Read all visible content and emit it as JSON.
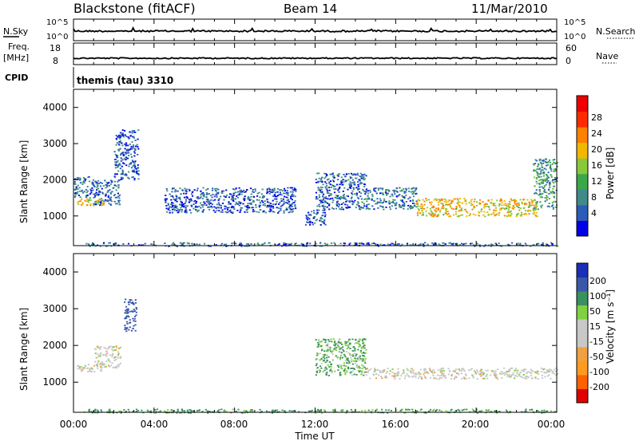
{
  "header": {
    "site": "Blackstone (fitACF)",
    "beam": "Beam 14",
    "date": "11/Mar/2010"
  },
  "noise_panel": {
    "left_label": "N.Sky",
    "left_ticks": [
      "10^5",
      "10^0"
    ],
    "right_label": "N.Search",
    "right_ticks": [
      "10^5",
      "10^0"
    ]
  },
  "freq_panel": {
    "left_label_1": "Freq.",
    "left_label_2": "[MHz]",
    "left_ticks": [
      "18",
      "8"
    ],
    "right_label": "Nave",
    "right_ticks": [
      "60",
      "0"
    ]
  },
  "cpid": {
    "label": "CPID",
    "text": "themis (tau) 3310"
  },
  "x_axis": {
    "ticks": [
      "00:00",
      "04:00",
      "08:00",
      "12:00",
      "16:00",
      "20:00",
      "00:00"
    ],
    "title": "Time UT"
  },
  "power_panel": {
    "ylabel": "Slant Range [km]",
    "yticks": [
      "1000",
      "2000",
      "3000",
      "4000"
    ],
    "colorbar_title": "Power [dB]",
    "colorbar_ticks": [
      "4",
      "8",
      "12",
      "16",
      "20",
      "24",
      "28"
    ]
  },
  "velocity_panel": {
    "ylabel": "Slant Range [km]",
    "yticks": [
      "1000",
      "2000",
      "3000",
      "4000"
    ],
    "colorbar_title": "Velocity [m s⁻¹]",
    "colorbar_ticks": [
      "200",
      "100",
      "50",
      "15",
      "-15",
      "-50",
      "-100",
      "-200"
    ]
  },
  "chart_data": [
    {
      "type": "line",
      "name": "noise",
      "x": [
        0,
        0.1,
        24
      ],
      "ylim_log": [
        0,
        5
      ],
      "level_note": "flat near bottom of log scale with small spikes",
      "x_range_hours": [
        0,
        24
      ]
    },
    {
      "type": "line",
      "name": "frequency",
      "ylim": [
        8,
        18
      ],
      "approx_value_mhz": 10.5,
      "x_range_hours": [
        0,
        24
      ]
    },
    {
      "type": "heatmap",
      "name": "power",
      "x_range_hours": [
        0,
        24
      ],
      "ylim_km": [
        180,
        4500
      ],
      "colorbar_range": [
        0,
        30
      ],
      "regions": [
        {
          "t": [
            0,
            1.5
          ],
          "r": [
            1300,
            1500
          ],
          "value": 18
        },
        {
          "t": [
            0,
            1.0
          ],
          "r": [
            1500,
            2100
          ],
          "value": 6
        },
        {
          "t": [
            1.0,
            2.3
          ],
          "r": [
            1300,
            2000
          ],
          "value": 6
        },
        {
          "t": [
            2.0,
            3.2
          ],
          "r": [
            2000,
            3400
          ],
          "value": 5
        },
        {
          "t": [
            4.5,
            11.0
          ],
          "r": [
            1100,
            1800
          ],
          "value": 5
        },
        {
          "t": [
            11.5,
            12.5
          ],
          "r": [
            750,
            1200
          ],
          "value": 6
        },
        {
          "t": [
            12.0,
            14.5
          ],
          "r": [
            1200,
            2200
          ],
          "value": 6
        },
        {
          "t": [
            14.5,
            17.0
          ],
          "r": [
            1200,
            1800
          ],
          "value": 7
        },
        {
          "t": [
            17.0,
            23.0
          ],
          "r": [
            1000,
            1500
          ],
          "value": 18
        },
        {
          "t": [
            22.8,
            24.0
          ],
          "r": [
            1200,
            2600
          ],
          "value": 10
        },
        {
          "t": [
            0.5,
            24.0
          ],
          "r": [
            180,
            280
          ],
          "value": 6
        }
      ]
    },
    {
      "type": "heatmap",
      "name": "velocity",
      "x_range_hours": [
        0,
        24
      ],
      "ylim_km": [
        180,
        4500
      ],
      "colorbar_range": [
        -250,
        250
      ],
      "regions": [
        {
          "t": [
            0,
            1.5
          ],
          "r": [
            1300,
            1500
          ],
          "value": 0
        },
        {
          "t": [
            1.0,
            2.3
          ],
          "r": [
            1400,
            2000
          ],
          "value": 0
        },
        {
          "t": [
            2.5,
            3.1
          ],
          "r": [
            2400,
            3300
          ],
          "value": 150
        },
        {
          "t": [
            12.0,
            14.5
          ],
          "r": [
            1200,
            2200
          ],
          "value": 30
        },
        {
          "t": [
            14.5,
            24.0
          ],
          "r": [
            1100,
            1400
          ],
          "value": 0
        },
        {
          "t": [
            0.5,
            24.0
          ],
          "r": [
            180,
            280
          ],
          "value": 40
        }
      ]
    }
  ],
  "colors": {
    "power_scale": [
      "#0000e8",
      "#2a5cb8",
      "#3f8a8a",
      "#3aa84a",
      "#88c83a",
      "#f0b800",
      "#ff7f00",
      "#ff2a00",
      "#ee0000"
    ],
    "velocity_scale": [
      "#e00000",
      "#ff6000",
      "#ff9a20",
      "#f0a040",
      "#c8c8c8",
      "#c8c8c8",
      "#80d040",
      "#3a9060",
      "#3a58a8",
      "#1a30b8"
    ]
  }
}
